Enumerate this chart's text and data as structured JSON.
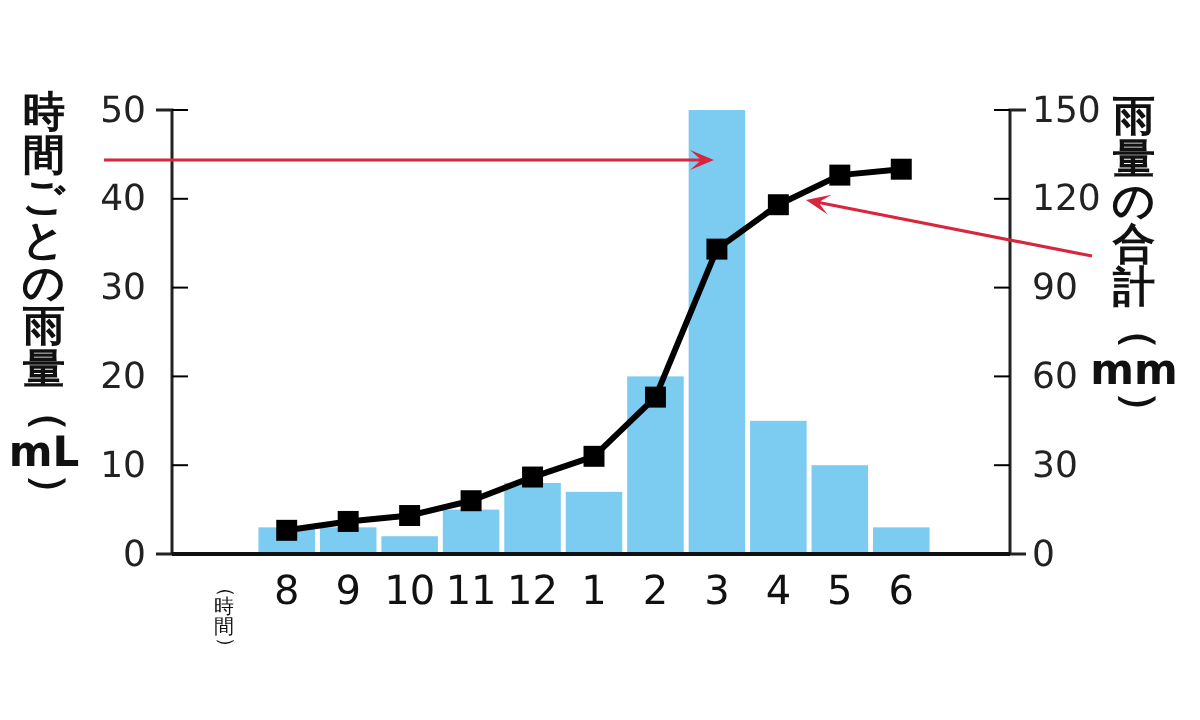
{
  "chart_data": {
    "type": "bar",
    "xlabel": "（時間）",
    "ylabel": "時間ごとの雨量（mL）",
    "y2label": "雨量の合計（mm）",
    "categories": [
      "8",
      "9",
      "10",
      "11",
      "12",
      "1",
      "2",
      "3",
      "4",
      "5",
      "6"
    ],
    "series": [
      {
        "color": "#7ccbf0",
        "values": [
          3,
          3,
          2,
          5,
          8,
          7,
          20,
          50,
          15,
          10,
          3
        ]
      },
      {
        "type": "line",
        "axis": "y2",
        "color": "#000000",
        "marker": "square",
        "values": [
          8,
          11,
          13,
          18,
          26,
          33,
          53,
          103,
          118,
          128,
          130
        ]
      }
    ],
    "ylim": [
      0,
      50
    ],
    "yticks": [
      0,
      10,
      20,
      30,
      40,
      50
    ],
    "y2lim": [
      0,
      150
    ],
    "y2ticks": [
      0,
      30,
      60,
      90,
      120,
      150
    ],
    "grid": false,
    "legend": false
  }
}
